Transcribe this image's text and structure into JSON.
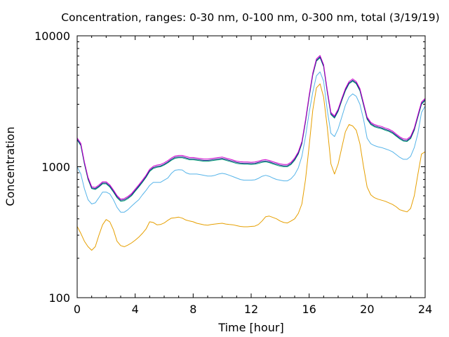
{
  "chart_data": {
    "type": "line",
    "title": "Concentration, ranges: 0-30 nm, 0-100 nm, 0-300 nm, total (3/19/19)",
    "xlabel": "Time [hour]",
    "ylabel": "Concentration",
    "xlim": [
      0,
      24
    ],
    "ylim": [
      100,
      10000
    ],
    "yscale": "log",
    "grid": false,
    "xticks": [
      "0",
      "4",
      "8",
      "12",
      "16",
      "20",
      "24"
    ],
    "yticks": [
      "100",
      "1000",
      "10000"
    ],
    "x": [
      0,
      0.25,
      0.5,
      0.75,
      1,
      1.25,
      1.5,
      1.75,
      2,
      2.25,
      2.5,
      2.75,
      3,
      3.25,
      3.5,
      3.75,
      4,
      4.25,
      4.5,
      4.75,
      5,
      5.25,
      5.5,
      5.75,
      6,
      6.25,
      6.5,
      6.75,
      7,
      7.25,
      7.5,
      7.75,
      8,
      8.25,
      8.5,
      8.75,
      9,
      9.25,
      9.5,
      9.75,
      10,
      10.25,
      10.5,
      10.75,
      11,
      11.25,
      11.5,
      11.75,
      12,
      12.25,
      12.5,
      12.75,
      13,
      13.25,
      13.5,
      13.75,
      14,
      14.25,
      14.5,
      14.75,
      15,
      15.25,
      15.5,
      15.75,
      16,
      16.25,
      16.5,
      16.75,
      17,
      17.25,
      17.5,
      17.75,
      18,
      18.25,
      18.5,
      18.75,
      19,
      19.25,
      19.5,
      19.75,
      20,
      20.25,
      20.5,
      20.75,
      21,
      21.25,
      21.5,
      21.75,
      22,
      22.25,
      22.5,
      22.75,
      23,
      23.25,
      23.5,
      23.75,
      24
    ],
    "series": [
      {
        "color": "#e69f00",
        "values": [
          350,
          310,
          270,
          245,
          230,
          245,
          300,
          360,
          395,
          380,
          330,
          270,
          250,
          245,
          252,
          262,
          275,
          290,
          310,
          335,
          380,
          375,
          360,
          362,
          372,
          390,
          405,
          408,
          412,
          405,
          392,
          385,
          380,
          370,
          365,
          360,
          358,
          362,
          365,
          368,
          370,
          365,
          362,
          360,
          355,
          350,
          348,
          348,
          350,
          352,
          362,
          385,
          415,
          420,
          410,
          400,
          385,
          375,
          372,
          385,
          400,
          440,
          520,
          800,
          1450,
          2700,
          4000,
          4300,
          3400,
          2000,
          1050,
          880,
          1050,
          1400,
          1850,
          2100,
          2050,
          1900,
          1500,
          1000,
          700,
          610,
          580,
          565,
          555,
          545,
          530,
          515,
          495,
          470,
          460,
          452,
          480,
          600,
          880,
          1250,
          1300
        ]
      },
      {
        "color": "#56b4e9",
        "values": [
          1000,
          880,
          680,
          560,
          520,
          530,
          580,
          640,
          640,
          620,
          560,
          490,
          450,
          450,
          470,
          500,
          530,
          560,
          610,
          660,
          720,
          760,
          760,
          760,
          790,
          820,
          890,
          940,
          950,
          945,
          900,
          880,
          880,
          880,
          870,
          860,
          850,
          850,
          860,
          880,
          890,
          880,
          860,
          840,
          820,
          800,
          790,
          790,
          790,
          795,
          815,
          845,
          860,
          845,
          820,
          800,
          790,
          780,
          780,
          810,
          870,
          980,
          1200,
          1700,
          2600,
          3700,
          4950,
          5300,
          4500,
          2700,
          1800,
          1700,
          1950,
          2400,
          2950,
          3400,
          3600,
          3450,
          3000,
          2300,
          1650,
          1500,
          1450,
          1420,
          1400,
          1370,
          1340,
          1300,
          1240,
          1180,
          1140,
          1140,
          1200,
          1400,
          1800,
          2600,
          2900
        ]
      },
      {
        "color": "#009e73",
        "values": [
          1600,
          1450,
          1050,
          800,
          680,
          670,
          700,
          740,
          740,
          700,
          640,
          580,
          545,
          550,
          570,
          600,
          650,
          700,
          760,
          830,
          920,
          970,
          990,
          1000,
          1030,
          1070,
          1120,
          1160,
          1170,
          1170,
          1150,
          1130,
          1130,
          1120,
          1110,
          1100,
          1100,
          1110,
          1120,
          1130,
          1140,
          1120,
          1100,
          1080,
          1060,
          1050,
          1045,
          1045,
          1040,
          1045,
          1060,
          1080,
          1090,
          1075,
          1050,
          1030,
          1010,
          1000,
          1000,
          1040,
          1120,
          1250,
          1500,
          2200,
          3400,
          5000,
          6400,
          6800,
          5800,
          3700,
          2500,
          2350,
          2650,
          3200,
          3800,
          4300,
          4500,
          4300,
          3800,
          2950,
          2300,
          2100,
          2020,
          1980,
          1950,
          1900,
          1860,
          1800,
          1710,
          1630,
          1570,
          1560,
          1640,
          1900,
          2400,
          3000,
          3200
        ]
      },
      {
        "color": "#1a1a8c",
        "values": [
          1620,
          1470,
          1065,
          812,
          690,
          680,
          710,
          752,
          752,
          712,
          650,
          590,
          554,
          560,
          580,
          610,
          660,
          712,
          772,
          842,
          935,
          985,
          1005,
          1015,
          1046,
          1086,
          1138,
          1180,
          1190,
          1190,
          1168,
          1148,
          1148,
          1138,
          1128,
          1118,
          1118,
          1128,
          1138,
          1148,
          1158,
          1138,
          1118,
          1098,
          1078,
          1068,
          1062,
          1062,
          1058,
          1062,
          1078,
          1098,
          1108,
          1092,
          1068,
          1048,
          1028,
          1017,
          1017,
          1058,
          1138,
          1270,
          1525,
          2235,
          3455,
          5080,
          6500,
          6910,
          5890,
          3760,
          2540,
          2390,
          2695,
          3255,
          3865,
          4370,
          4575,
          4370,
          3865,
          3000,
          2340,
          2135,
          2055,
          2012,
          1982,
          1932,
          1892,
          1830,
          1738,
          1657,
          1595,
          1585,
          1668,
          1932,
          2440,
          3050,
          3255
        ]
      },
      {
        "color": "#cc00cc",
        "values": [
          1660,
          1510,
          1090,
          830,
          705,
          695,
          725,
          768,
          768,
          728,
          665,
          603,
          566,
          572,
          593,
          624,
          675,
          728,
          790,
          862,
          957,
          1008,
          1030,
          1040,
          1072,
          1113,
          1166,
          1208,
          1220,
          1220,
          1197,
          1176,
          1176,
          1166,
          1155,
          1145,
          1145,
          1155,
          1166,
          1176,
          1186,
          1166,
          1145,
          1124,
          1103,
          1092,
          1087,
          1087,
          1082,
          1087,
          1103,
          1124,
          1134,
          1118,
          1092,
          1072,
          1051,
          1041,
          1041,
          1082,
          1166,
          1300,
          1560,
          2290,
          3540,
          5200,
          6660,
          7080,
          6030,
          3850,
          2600,
          2445,
          2760,
          3330,
          3955,
          4475,
          4685,
          4475,
          3955,
          3070,
          2395,
          2185,
          2100,
          2060,
          2030,
          1976,
          1935,
          1872,
          1778,
          1695,
          1632,
          1622,
          1706,
          1976,
          2495,
          3120,
          3330
        ]
      }
    ]
  }
}
